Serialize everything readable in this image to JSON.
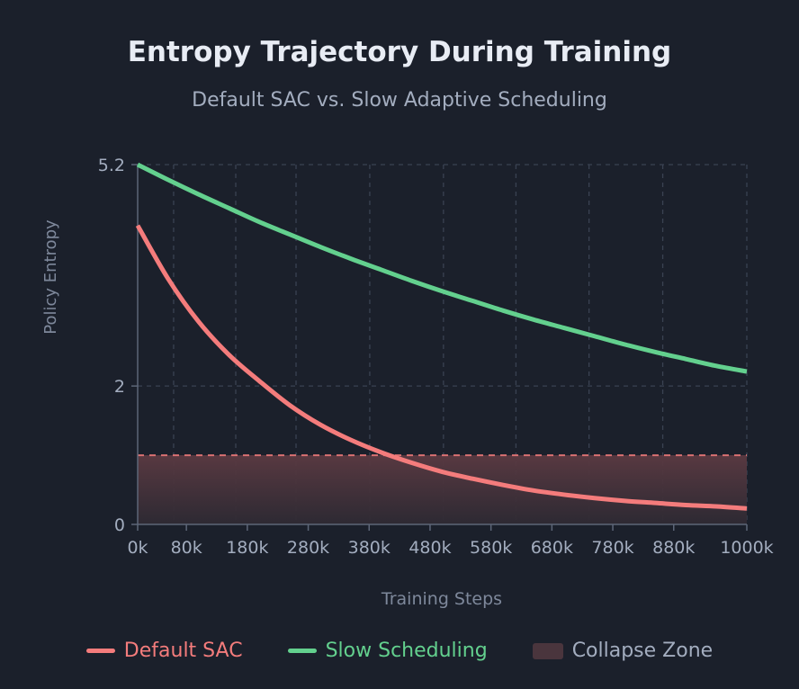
{
  "chart_data": {
    "type": "line",
    "title": "Entropy Trajectory During Training",
    "subtitle": "Default SAC vs. Slow Adaptive Scheduling",
    "xlabel": "Training Steps",
    "ylabel": "Policy Entropy",
    "xlim": [
      0,
      1000
    ],
    "ylim": [
      0,
      5.2
    ],
    "x_unit": "k",
    "x_ticks": [
      0,
      80,
      180,
      280,
      380,
      480,
      580,
      680,
      780,
      880,
      1000
    ],
    "x_tick_labels": [
      "0k",
      "80k",
      "180k",
      "280k",
      "380k",
      "480k",
      "580k",
      "680k",
      "780k",
      "880k",
      "1000k"
    ],
    "x_gridlines": [
      59,
      161,
      260,
      381,
      502,
      621,
      741,
      862,
      1000
    ],
    "y_ticks": [
      0,
      2,
      5.2
    ],
    "y_tick_labels": [
      "0",
      "2",
      "5.2"
    ],
    "grid": true,
    "legend_position": "bottom",
    "x": [
      0,
      50,
      100,
      150,
      200,
      250,
      300,
      350,
      400,
      450,
      500,
      550,
      600,
      650,
      700,
      750,
      800,
      850,
      900,
      950,
      1000
    ],
    "series": [
      {
        "name": "Default SAC",
        "color": "#f47c7c",
        "values": [
          4.32,
          3.55,
          2.93,
          2.45,
          2.07,
          1.72,
          1.44,
          1.22,
          1.04,
          0.89,
          0.76,
          0.66,
          0.57,
          0.49,
          0.43,
          0.38,
          0.34,
          0.31,
          0.28,
          0.26,
          0.23
        ]
      },
      {
        "name": "Slow Scheduling",
        "color": "#63d08e",
        "values": [
          5.2,
          4.98,
          4.77,
          4.57,
          4.37,
          4.19,
          4.01,
          3.84,
          3.68,
          3.52,
          3.37,
          3.23,
          3.09,
          2.96,
          2.84,
          2.72,
          2.6,
          2.49,
          2.39,
          2.29,
          2.21
        ]
      }
    ],
    "collapse_zone": {
      "name": "Collapse Zone",
      "threshold": 1.0,
      "color": "#5b3a42",
      "line_color": "#f47c7c"
    }
  }
}
